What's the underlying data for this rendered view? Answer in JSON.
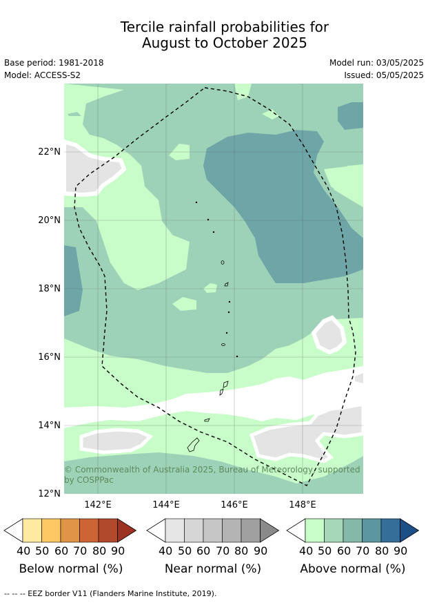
{
  "title": {
    "line1": "Tercile rainfall probabilities for",
    "line2": "August to October 2025"
  },
  "meta": {
    "base_period": "Base period: 1981-2018",
    "model": "Model: ACCESS-S2",
    "model_run": "Model run: 03/05/2025",
    "issued": "Issued: 05/05/2025"
  },
  "map": {
    "lat_labels": [
      "22°N",
      "20°N",
      "18°N",
      "16°N",
      "14°N",
      "12°N"
    ],
    "lon_labels": [
      "142°E",
      "144°E",
      "146°E",
      "148°E"
    ],
    "copyright_line1": "© Commonwealth of Australia 2025, Bureau of Meteorology, supported",
    "copyright_line2": "by COSPPac",
    "border_style": "dashed",
    "colors": {
      "above_50": "#c8fcc8",
      "above_60": "#9ed2b8",
      "above_70": "#6ea6a8",
      "near_50": "#e4e4e4",
      "border": "#000000"
    }
  },
  "legends": [
    {
      "label": "Below normal (%)",
      "ticks": [
        "40",
        "50",
        "60",
        "70",
        "80",
        "90"
      ],
      "colors": [
        "#ffffff",
        "#feeaa0",
        "#fdc863",
        "#e09448",
        "#cc6433",
        "#b04a2b",
        "#9c3221"
      ]
    },
    {
      "label": "Near normal (%)",
      "ticks": [
        "40",
        "50",
        "60",
        "70",
        "80",
        "90"
      ],
      "colors": [
        "#ffffff",
        "#e6e6e6",
        "#d6d6d6",
        "#c6c6c6",
        "#b4b4b4",
        "#a0a0a0",
        "#8a8a8a"
      ]
    },
    {
      "label": "Above normal (%)",
      "ticks": [
        "40",
        "50",
        "60",
        "70",
        "80",
        "90"
      ],
      "colors": [
        "#ffffff",
        "#c8fcc8",
        "#a6d8b8",
        "#84b8a8",
        "#5c96a0",
        "#356e98",
        "#1b4f86"
      ]
    }
  ],
  "footer": "--  --  -- EEZ border V11 (Flanders Marine Institute, 2019)."
}
